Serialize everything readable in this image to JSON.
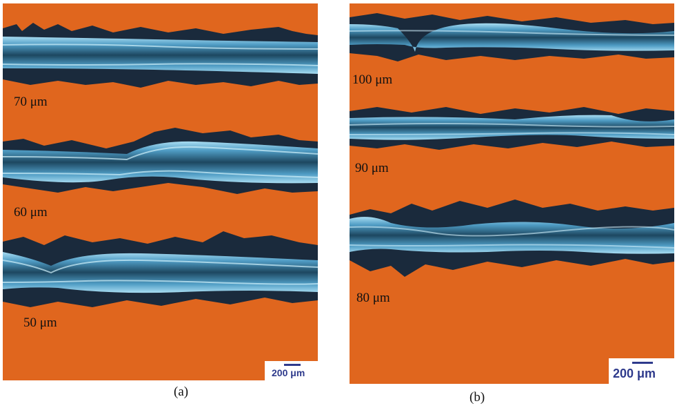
{
  "colors": {
    "substrate": "#e0661e",
    "dark_border": "#1a2a3c",
    "channel": "#6ec6ea",
    "channel_core": "#1e4a62",
    "scale": "#2e3a8c"
  },
  "panel_a": {
    "caption": "(a)",
    "tracks": [
      {
        "label": "70 μm"
      },
      {
        "label": "60 μm"
      },
      {
        "label": "50 μm"
      }
    ],
    "scale_bar": "200 μm"
  },
  "panel_b": {
    "caption": "(b)",
    "tracks": [
      {
        "label": "100 μm"
      },
      {
        "label": "90 μm"
      },
      {
        "label": "80 μm"
      }
    ],
    "scale_bar": "200 μm"
  }
}
